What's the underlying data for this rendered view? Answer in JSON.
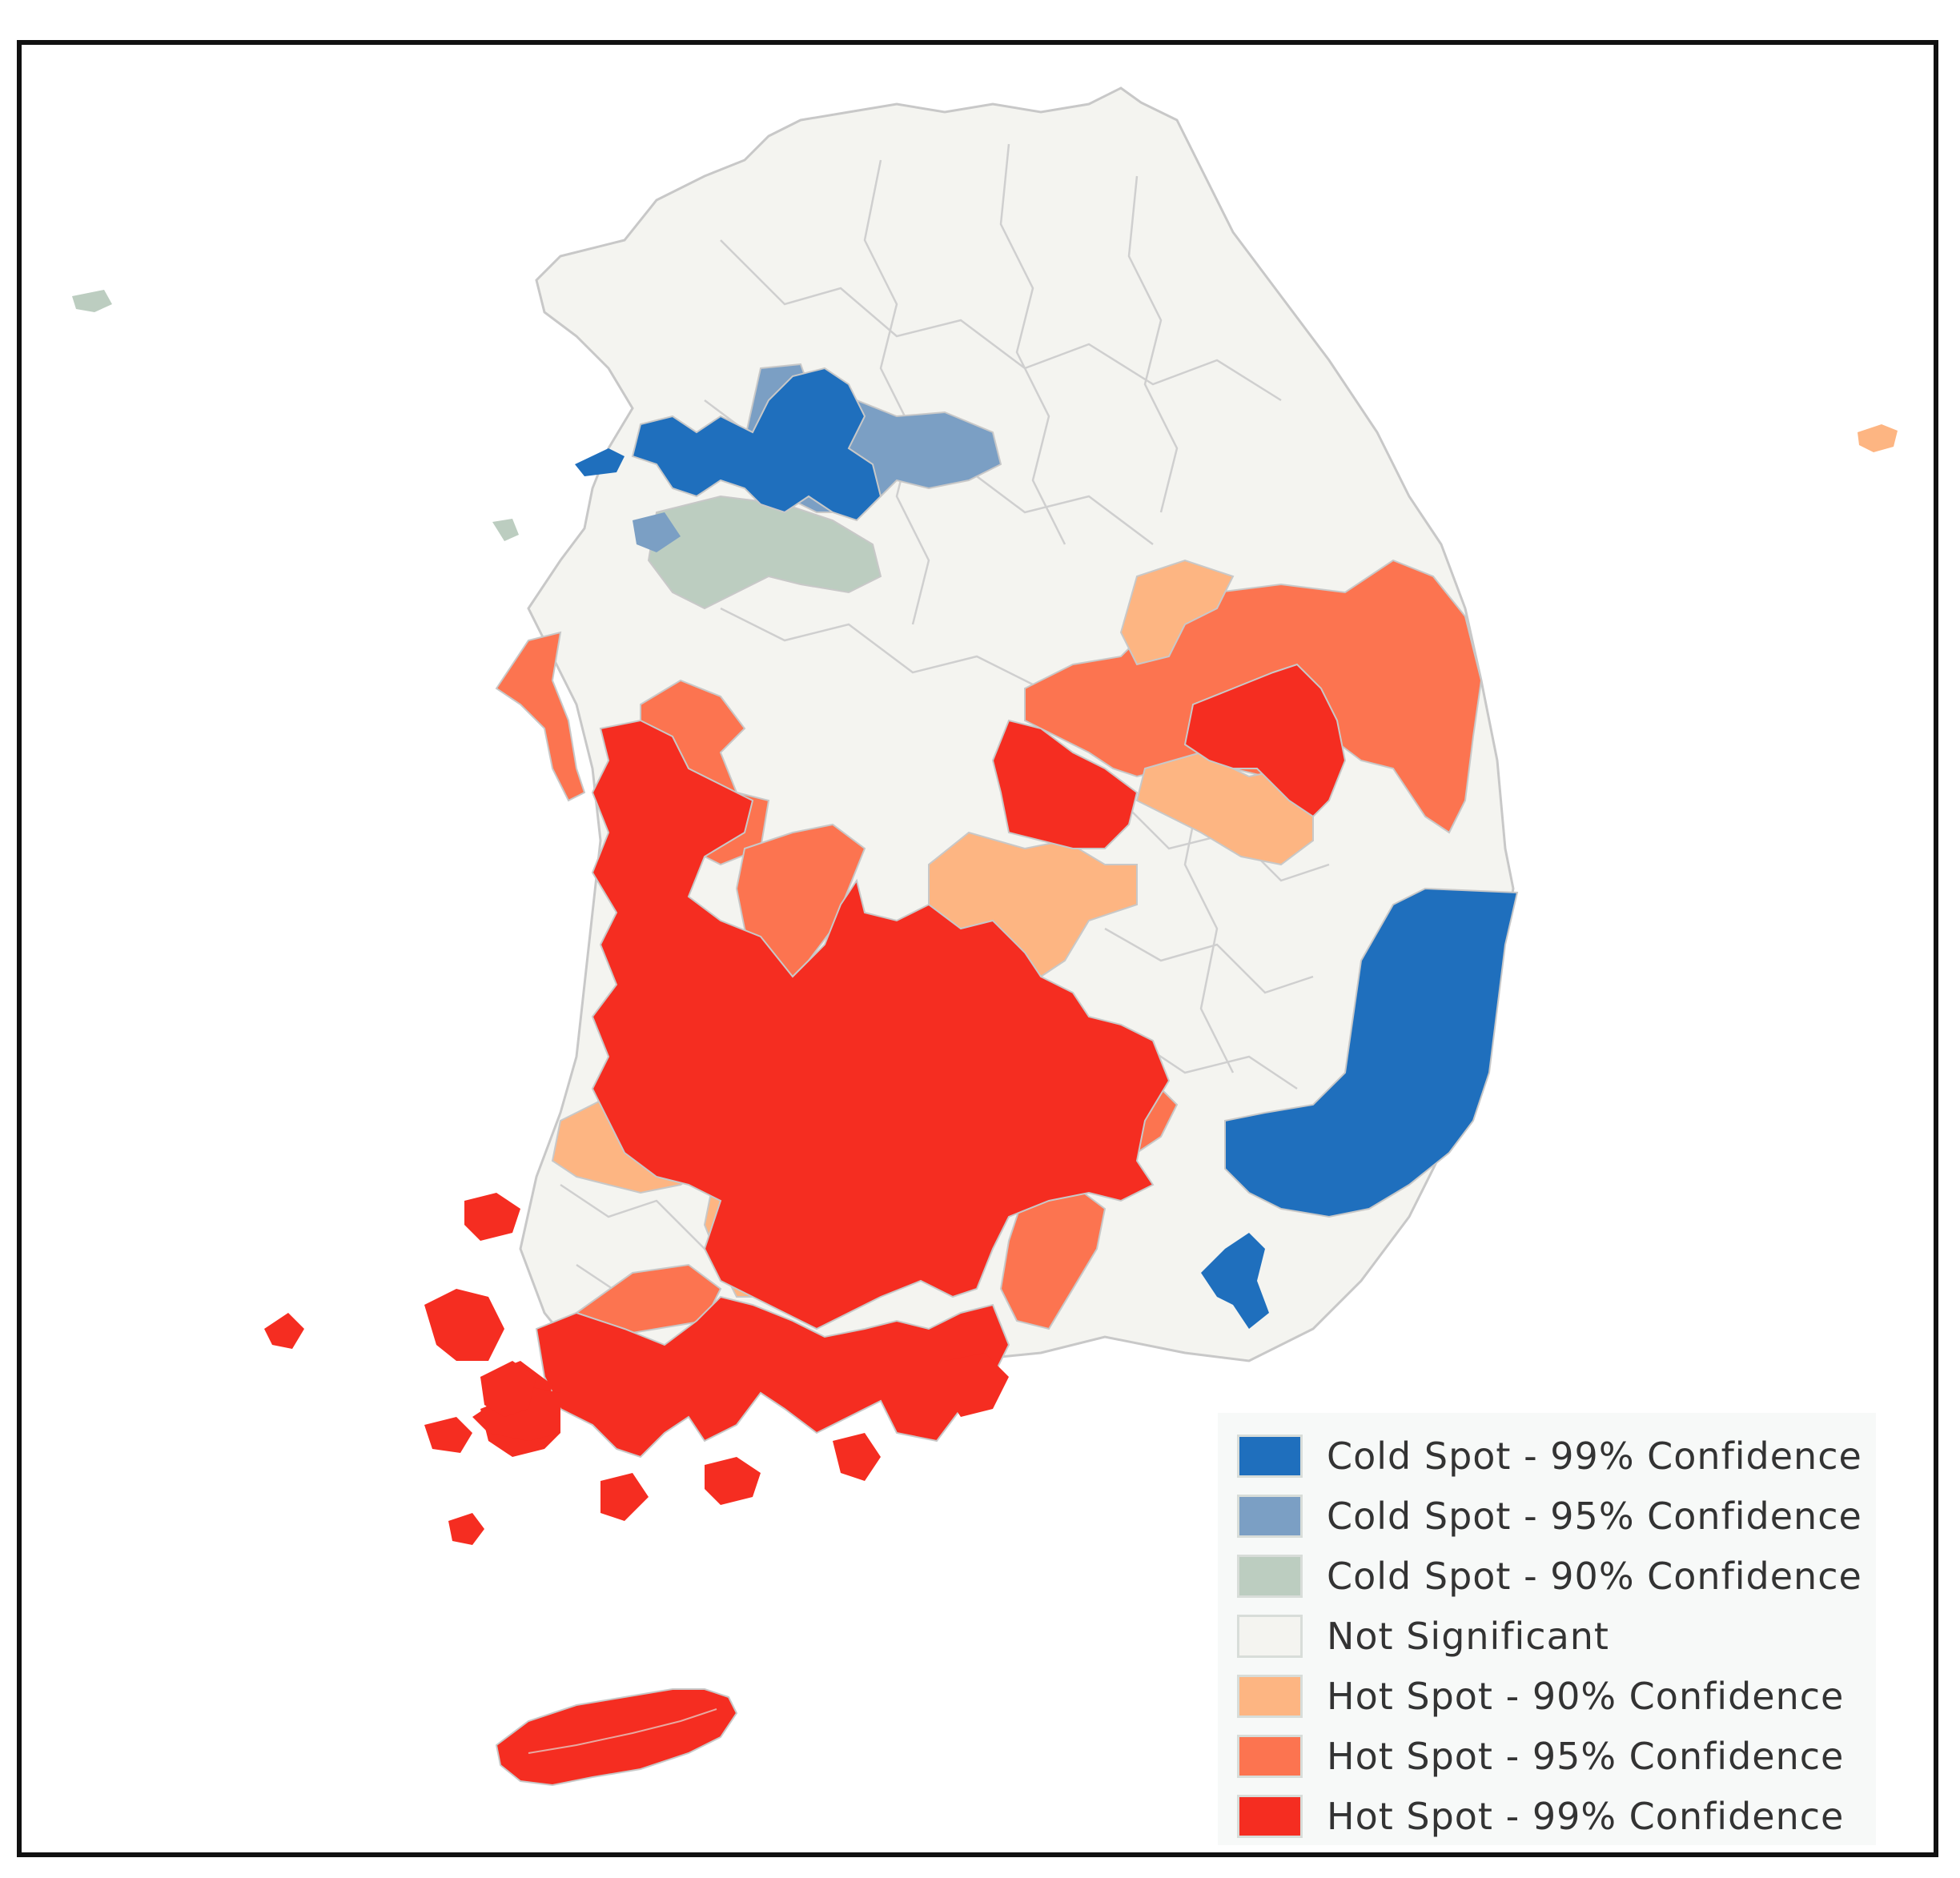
{
  "legend": {
    "items": [
      {
        "label": "Cold Spot - 99% Confidence",
        "color": "#1f6fbd"
      },
      {
        "label": "Cold Spot - 95% Confidence",
        "color": "#7b9fc4"
      },
      {
        "label": "Cold Spot - 90% Confidence",
        "color": "#bccdc0"
      },
      {
        "label": "Not Significant",
        "color": "#f4f4f0"
      },
      {
        "label": "Hot Spot - 90% Confidence",
        "color": "#fdb582"
      },
      {
        "label": "Hot Spot - 95% Confidence",
        "color": "#fc7450"
      },
      {
        "label": "Hot Spot - 99% Confidence",
        "color": "#f52d21"
      }
    ]
  },
  "colors": {
    "border_line": "#c8c8c8",
    "frame": "#111111",
    "background": "#ffffff"
  }
}
